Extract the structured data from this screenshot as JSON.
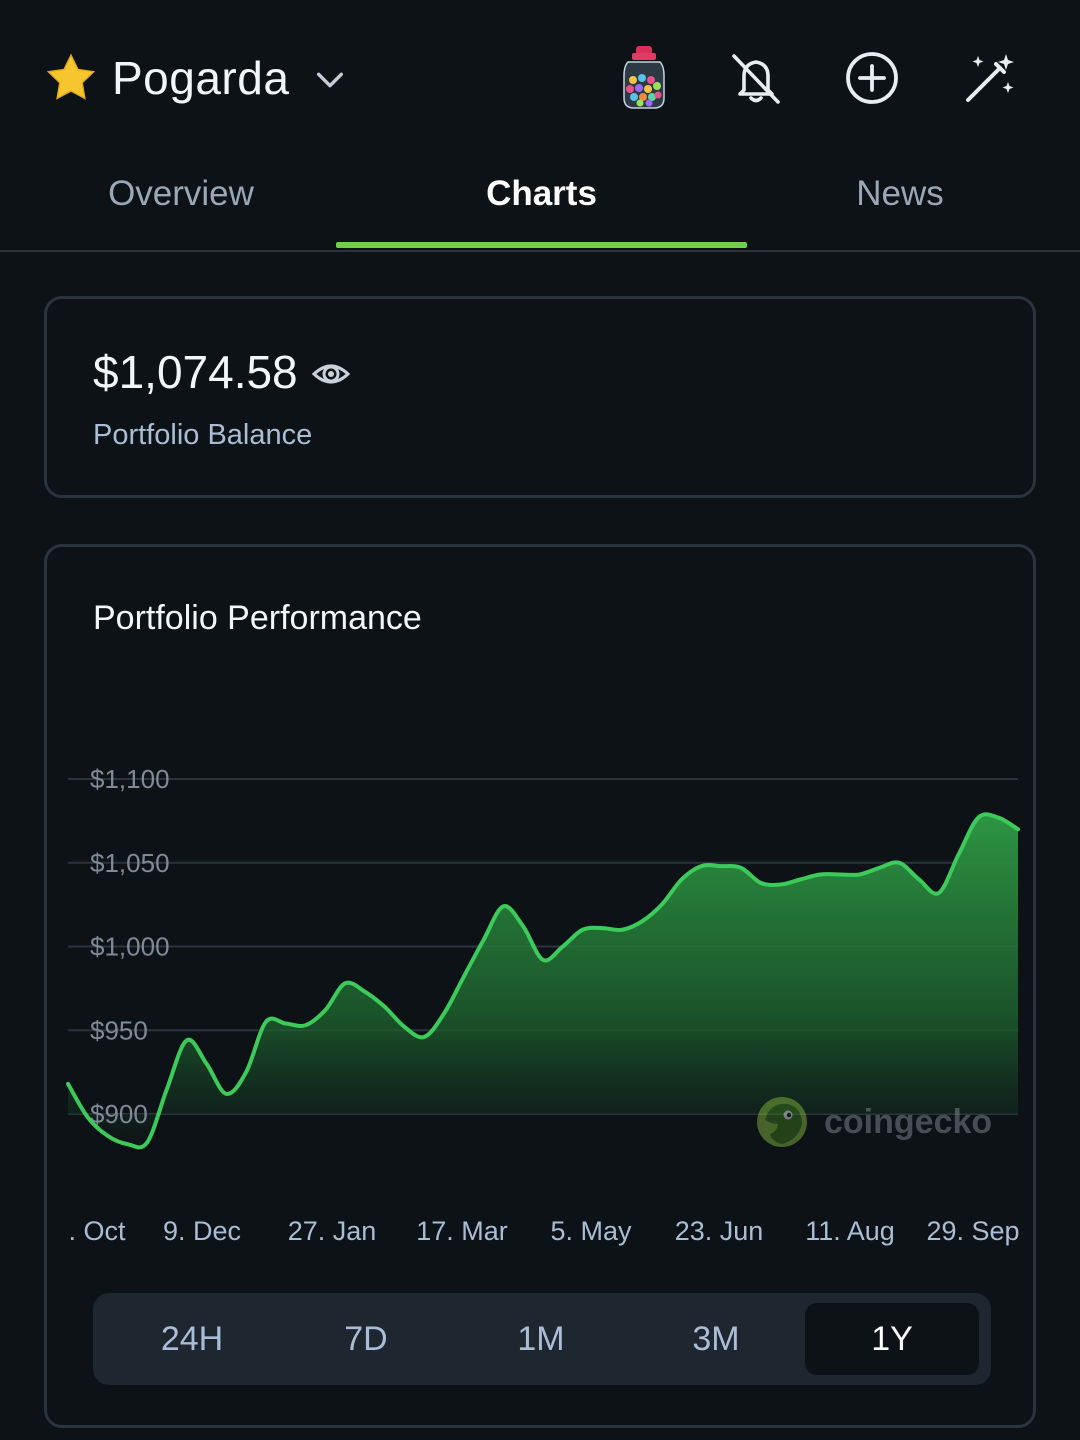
{
  "header": {
    "portfolio_name": "Pogarda",
    "icons": [
      "star-icon",
      "chevron-down-icon",
      "candy-jar-icon",
      "bell-off-icon",
      "plus-circle-icon",
      "magic-wand-icon"
    ]
  },
  "tabs": [
    {
      "label": "Overview",
      "active": false
    },
    {
      "label": "Charts",
      "active": true
    },
    {
      "label": "News",
      "active": false
    }
  ],
  "balance": {
    "value": "$1,074.58",
    "label": "Portfolio Balance"
  },
  "performance": {
    "title": "Portfolio Performance",
    "watermark": "coingecko"
  },
  "range_buttons": [
    {
      "label": "24H",
      "active": false
    },
    {
      "label": "7D",
      "active": false
    },
    {
      "label": "1M",
      "active": false
    },
    {
      "label": "3M",
      "active": false
    },
    {
      "label": "1Y",
      "active": true
    }
  ],
  "colors": {
    "accent_green": "#6fd14a",
    "line_green": "#3ccb5a",
    "background": "#0d1217"
  },
  "chart_data": {
    "type": "area",
    "title": "Portfolio Performance",
    "yticks": [
      "$900",
      "$950",
      "$1,000",
      "$1,050",
      "$1,100"
    ],
    "ytick_values": [
      900,
      950,
      1000,
      1050,
      1100
    ],
    "xticks": [
      ". Oct",
      "9. Dec",
      "27. Jan",
      "17. Mar",
      "5. May",
      "23. Jun",
      "11. Aug",
      "29. Sep"
    ],
    "ylim": [
      860,
      1125
    ],
    "grid": true,
    "series": [
      {
        "values": [
          918,
          898,
          887,
          882,
          883,
          915,
          944,
          930,
          912,
          925,
          955,
          954,
          953,
          962,
          978,
          973,
          964,
          952,
          946,
          960,
          982,
          1004,
          1024,
          1012,
          992,
          1000,
          1010,
          1011,
          1010,
          1015,
          1025,
          1040,
          1048,
          1048,
          1047,
          1038,
          1037,
          1040,
          1043,
          1043,
          1043,
          1047,
          1050,
          1040,
          1032,
          1055,
          1077,
          1077,
          1070
        ]
      }
    ]
  }
}
